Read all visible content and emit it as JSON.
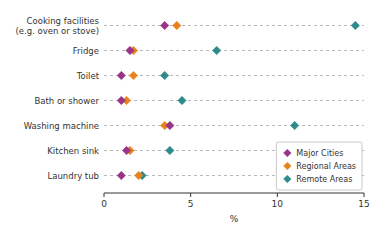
{
  "chart_data": {
    "type": "dot",
    "orientation": "horizontal",
    "marker": "diamond",
    "categories": [
      "Cooking facilities\n(e.g. oven or stove)",
      "Fridge",
      "Toilet",
      "Bath or shower",
      "Washing machine",
      "Kitchen sink",
      "Laundry tub"
    ],
    "series": [
      {
        "name": "Major Cities",
        "color": "#993388",
        "values": [
          3.5,
          1.5,
          1.0,
          1.0,
          3.8,
          1.3,
          1.0
        ]
      },
      {
        "name": "Regional Areas",
        "color": "#E8821A",
        "values": [
          4.2,
          1.7,
          1.7,
          1.3,
          3.5,
          1.5,
          2.0
        ]
      },
      {
        "name": "Remote Areas",
        "color": "#2E8B8B",
        "values": [
          14.5,
          6.5,
          3.5,
          4.5,
          11.0,
          3.8,
          2.2
        ]
      }
    ],
    "xlabel": "%",
    "xlim": [
      0,
      15
    ],
    "xticks": [
      0,
      5,
      10,
      15
    ],
    "legend": "lower right"
  }
}
